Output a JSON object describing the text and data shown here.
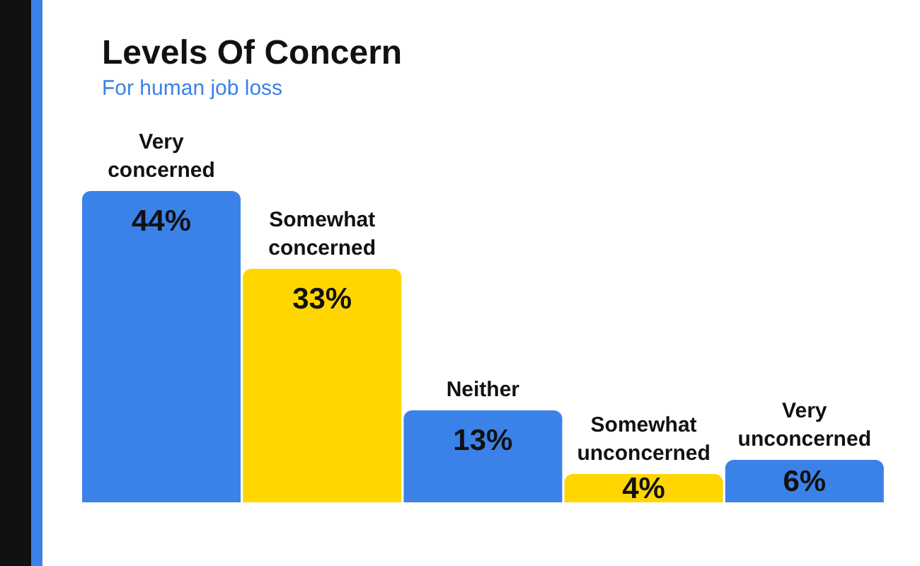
{
  "chart_data": {
    "type": "bar",
    "title": "Levels Of Concern",
    "subtitle": "For human job loss",
    "categories": [
      "Very concerned",
      "Somewhat concerned",
      "Neither",
      "Somewhat unconcerned",
      "Very unconcerned"
    ],
    "values": [
      44,
      33,
      13,
      4,
      6
    ],
    "value_labels": [
      "44%",
      "33%",
      "13%",
      "4%",
      "6%"
    ],
    "colors": [
      "#3b82e8",
      "#ffd600",
      "#3b82e8",
      "#ffd600",
      "#3b82e8"
    ],
    "grid": false,
    "legend": false
  }
}
